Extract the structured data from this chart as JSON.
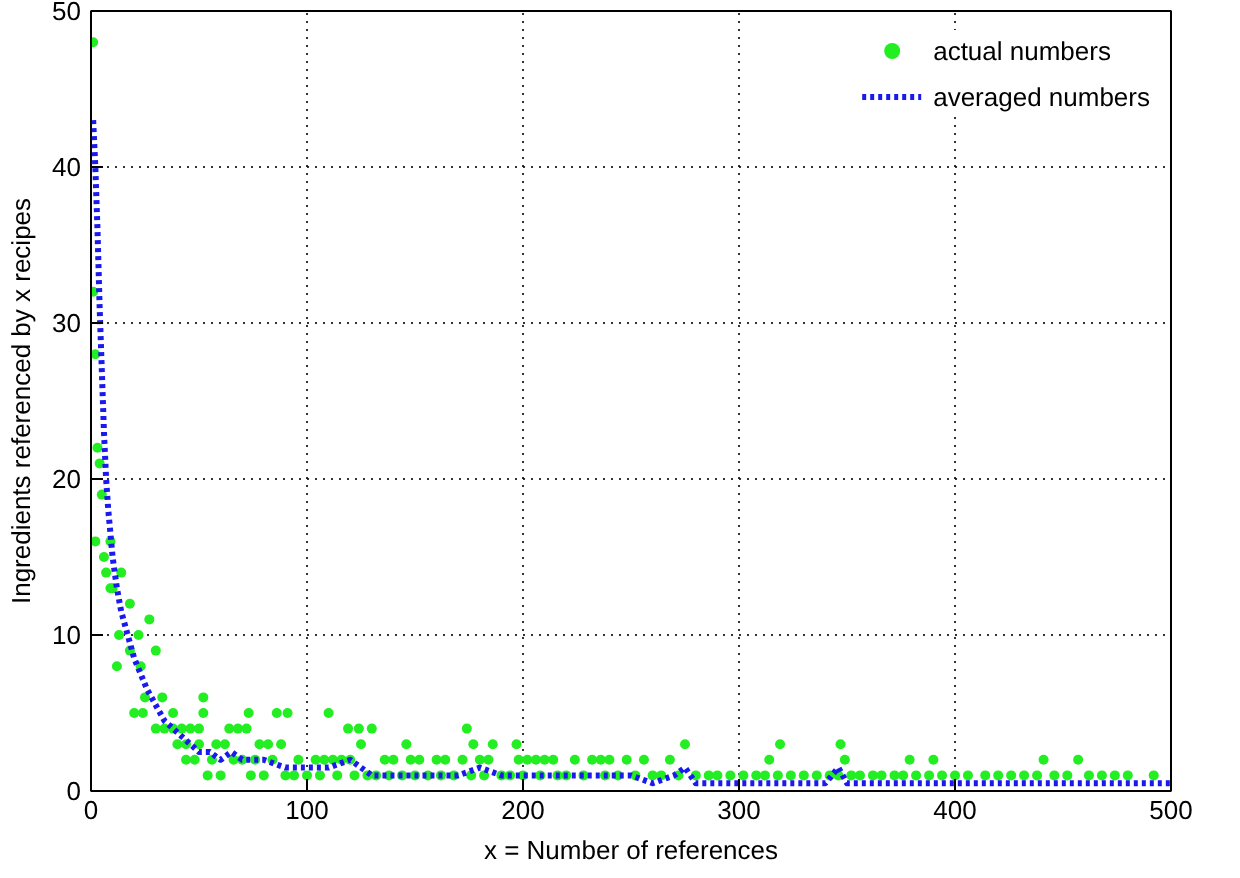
{
  "chart_data": {
    "type": "scatter",
    "xlabel": "x = Number of references",
    "ylabel": "Ingredients referenced by x recipes",
    "xlim": [
      0,
      500
    ],
    "ylim": [
      0,
      50
    ],
    "xticks": [
      0,
      100,
      200,
      300,
      400,
      500
    ],
    "yticks": [
      0,
      10,
      20,
      30,
      40,
      50
    ],
    "grid": true,
    "legend": "top right",
    "series": [
      {
        "name": "actual numbers",
        "marker": "circle",
        "color": "#22ee22",
        "x": [
          1,
          1,
          2,
          3,
          4,
          5,
          2,
          9,
          6,
          7,
          14,
          9,
          10,
          18,
          27,
          13,
          22,
          18,
          30,
          12,
          23,
          25,
          33,
          52,
          20,
          24,
          38,
          52,
          73,
          86,
          91,
          110,
          30,
          34,
          38,
          42,
          46,
          50,
          64,
          68,
          72,
          119,
          124,
          130,
          174,
          40,
          44,
          50,
          58,
          62,
          78,
          82,
          88,
          125,
          146,
          177,
          186,
          197,
          275,
          319,
          347,
          44,
          48,
          56,
          66,
          70,
          76,
          84,
          96,
          104,
          108,
          112,
          116,
          120,
          136,
          140,
          148,
          152,
          160,
          164,
          172,
          180,
          184,
          198,
          202,
          206,
          210,
          214,
          224,
          232,
          236,
          240,
          248,
          256,
          268,
          314,
          349,
          379,
          390,
          441,
          457,
          54,
          60,
          74,
          80,
          90,
          94,
          100,
          106,
          114,
          122,
          128,
          132,
          138,
          144,
          150,
          156,
          162,
          168,
          176,
          182,
          190,
          194,
          200,
          208,
          216,
          220,
          228,
          238,
          244,
          252,
          260,
          264,
          272,
          280,
          286,
          290,
          296,
          302,
          308,
          312,
          318,
          324,
          330,
          336,
          342,
          346,
          352,
          356,
          362,
          366,
          372,
          376,
          382,
          388,
          394,
          400,
          406,
          414,
          420,
          426,
          432,
          438,
          446,
          452,
          462,
          468,
          474,
          480,
          492
        ],
        "values": [
          48,
          32,
          28,
          22,
          21,
          19,
          16,
          16,
          15,
          14,
          14,
          13,
          13,
          12,
          11,
          10,
          10,
          9,
          9,
          8,
          8,
          6,
          6,
          6,
          5,
          5,
          5,
          5,
          5,
          5,
          5,
          5,
          4,
          4,
          4,
          4,
          4,
          4,
          4,
          4,
          4,
          4,
          4,
          4,
          4,
          3,
          3,
          3,
          3,
          3,
          3,
          3,
          3,
          3,
          3,
          3,
          3,
          3,
          3,
          3,
          3,
          2,
          2,
          2,
          2,
          2,
          2,
          2,
          2,
          2,
          2,
          2,
          2,
          2,
          2,
          2,
          2,
          2,
          2,
          2,
          2,
          2,
          2,
          2,
          2,
          2,
          2,
          2,
          2,
          2,
          2,
          2,
          2,
          2,
          2,
          2,
          2,
          2,
          2,
          2,
          2,
          1,
          1,
          1,
          1,
          1,
          1,
          1,
          1,
          1,
          1,
          1,
          1,
          1,
          1,
          1,
          1,
          1,
          1,
          1,
          1,
          1,
          1,
          1,
          1,
          1,
          1,
          1,
          1,
          1,
          1,
          1,
          1,
          1,
          1,
          1,
          1,
          1,
          1,
          1,
          1,
          1,
          1,
          1,
          1,
          1,
          1,
          1,
          1,
          1,
          1,
          1,
          1,
          1,
          1,
          1,
          1,
          1,
          1,
          1,
          1,
          1,
          1,
          1,
          1,
          1,
          1,
          1,
          1,
          1
        ]
      },
      {
        "name": "averaged numbers",
        "type": "line",
        "line_style": "dotted",
        "color": "#1a1aee",
        "x": [
          1,
          2,
          3,
          4,
          5,
          6,
          7,
          8,
          10,
          12,
          14,
          16,
          18,
          20,
          23,
          26,
          30,
          34,
          38,
          42,
          46,
          50,
          55,
          60,
          65,
          70,
          75,
          80,
          90,
          100,
          110,
          120,
          130,
          140,
          150,
          160,
          170,
          180,
          190,
          200,
          210,
          220,
          230,
          240,
          250,
          260,
          270,
          275,
          280,
          290,
          300,
          320,
          340,
          346,
          350,
          370,
          400,
          430,
          460,
          490,
          500
        ],
        "values": [
          43,
          40,
          36,
          31,
          27,
          23,
          20,
          18,
          15,
          13,
          11.5,
          10.5,
          9.5,
          8.5,
          7.5,
          6.5,
          5.5,
          4.5,
          4,
          3.5,
          3,
          2.5,
          2.5,
          2,
          2.5,
          2,
          2,
          2,
          1.5,
          1.5,
          1.5,
          2,
          1,
          1,
          1,
          1,
          1,
          1.5,
          1,
          1,
          1,
          1,
          1,
          1,
          1,
          0.5,
          1,
          1.5,
          0.5,
          0.5,
          0.5,
          0.5,
          0.5,
          1.5,
          0.5,
          0.5,
          0.5,
          0.5,
          0.5,
          0.5,
          0.5
        ]
      }
    ]
  }
}
